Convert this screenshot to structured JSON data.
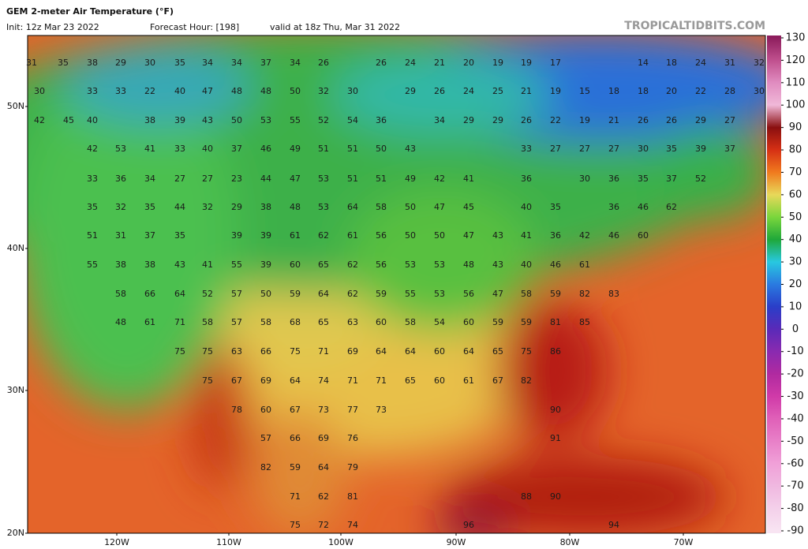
{
  "header": {
    "title": "GEM 2-meter Air Temperature (°F)",
    "init": "Init: 12z Mar 23 2022",
    "forecast_hour": "Forecast Hour: [198]",
    "valid": "valid at 18z Thu, Mar 31 2022",
    "site": "TROPICALTIDBITS.COM"
  },
  "latitudes": [
    "50N",
    "40N",
    "30N",
    "20N"
  ],
  "longitudes": [
    "120W",
    "110W",
    "100W",
    "90W",
    "80W",
    "70W"
  ],
  "colorbar": {
    "ticks": [
      130,
      120,
      110,
      100,
      90,
      80,
      70,
      60,
      50,
      40,
      30,
      20,
      10,
      0,
      -10,
      -20,
      -30,
      -40,
      -50,
      -60,
      -70,
      -80,
      -90
    ],
    "colors": [
      "#8e1e5e",
      "#c0508e",
      "#e08cc0",
      "#f0b8d8",
      "#8a0f10",
      "#d63014",
      "#f07a1e",
      "#e8d85a",
      "#7ad63c",
      "#1fa83a",
      "#28c8e0",
      "#2a7ae0",
      "#2a3ec8",
      "#5a2ab8",
      "#8a2ab0",
      "#b02aa0",
      "#d03aa8",
      "#e060b8",
      "#e880c8",
      "#f0a0d8",
      "#f0b8e0",
      "#f4d0ea",
      "#f8e4f2"
    ]
  },
  "stations": [
    31,
    35,
    38,
    29,
    30,
    35,
    34,
    34,
    37,
    34,
    26,
    26,
    24,
    21,
    20,
    19,
    19,
    17,
    14,
    18,
    24,
    31,
    32,
    30,
    33,
    33,
    22,
    40,
    47,
    48,
    48,
    50,
    32,
    30,
    29,
    26,
    24,
    25,
    21,
    19,
    15,
    18,
    18,
    20,
    22,
    28,
    30,
    42,
    45,
    40,
    38,
    39,
    43,
    50,
    53,
    55,
    52,
    54,
    36,
    34,
    29,
    29,
    26,
    22,
    19,
    21,
    26,
    26,
    29,
    27,
    42,
    53,
    41,
    33,
    40,
    37,
    46,
    49,
    51,
    51,
    50,
    43,
    33,
    27,
    27,
    27,
    30,
    35,
    39,
    37,
    33,
    36,
    34,
    27,
    27,
    23,
    44,
    47,
    53,
    51,
    51,
    49,
    42,
    41,
    36,
    30,
    36,
    35,
    37,
    52,
    35,
    32,
    35,
    44,
    32,
    29,
    38,
    48,
    53,
    64,
    58,
    50,
    47,
    45,
    40,
    35,
    36,
    46,
    62,
    51,
    31,
    37,
    35,
    39,
    39,
    61,
    62,
    61,
    56,
    50,
    50,
    47,
    43,
    41,
    36,
    42,
    46,
    60,
    55,
    38,
    38,
    43,
    41,
    55,
    39,
    60,
    65,
    62,
    56,
    53,
    53,
    48,
    43,
    40,
    46,
    61,
    58,
    66,
    64,
    52,
    57,
    50,
    59,
    64,
    62,
    59,
    55,
    53,
    56,
    47,
    58,
    59,
    82,
    83,
    48,
    61,
    71,
    58,
    57,
    58,
    68,
    65,
    63,
    60,
    58,
    54,
    60,
    59,
    59,
    81,
    85,
    75,
    75,
    63,
    66,
    75,
    71,
    69,
    64,
    64,
    60,
    64,
    65,
    75,
    86,
    75,
    67,
    69,
    64,
    74,
    71,
    71,
    65,
    60,
    61,
    67,
    82,
    78,
    60,
    67,
    73,
    77,
    73,
    90,
    57,
    66,
    69,
    76,
    91,
    82,
    59,
    64,
    79,
    71,
    62,
    81,
    88,
    90,
    75,
    72,
    74,
    96,
    94
  ]
}
